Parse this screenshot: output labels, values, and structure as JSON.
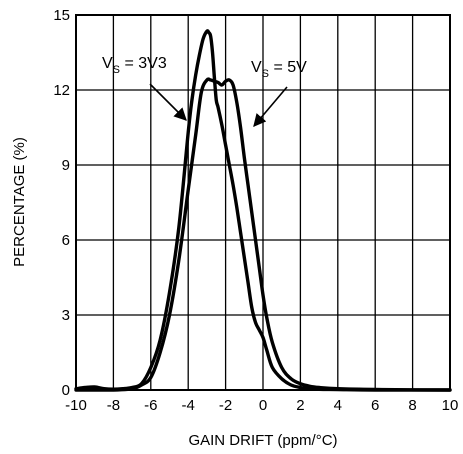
{
  "chart_data": {
    "type": "line",
    "title": "",
    "xlabel": "GAIN DRIFT (ppm/°C)",
    "ylabel": "PERCENTAGE (%)",
    "xlim": [
      -10,
      10
    ],
    "ylim": [
      0,
      15
    ],
    "xticks": [
      "-10",
      "-8",
      "-6",
      "-4",
      "-2",
      "0",
      "2",
      "4",
      "6",
      "8",
      "10"
    ],
    "yticks": [
      "0",
      "3",
      "6",
      "9",
      "12",
      "15"
    ],
    "grid": true,
    "annotations": [
      {
        "main": "V",
        "sub": "S",
        "rest": " = 3V3",
        "points_to": [
          -3.95,
          10.75
        ]
      },
      {
        "main": "V",
        "sub": "S",
        "rest": " = 5V",
        "points_to": [
          -0.6,
          10.4
        ]
      }
    ],
    "series": [
      {
        "x": [
          -10,
          -9.5,
          -9.0,
          -8.5,
          -8.0,
          -7.5,
          -7.0,
          -6.5,
          -6.0,
          -5.5,
          -5.0,
          -4.5,
          -4.0,
          -3.8,
          -3.6,
          -3.4,
          -3.2,
          -3.0,
          -2.9,
          -2.8,
          -2.7,
          -2.6,
          -2.5,
          -2.4,
          -2.2,
          -2.0,
          -1.8,
          -1.6,
          -1.4,
          -1.2,
          -1.0,
          -0.8,
          -0.6,
          -0.4,
          -0.2,
          0.0,
          0.2,
          0.5,
          1.0,
          1.5,
          2.0,
          2.5,
          3.0,
          4.0,
          6.0,
          10.0
        ],
        "values": [
          0.05,
          0.1,
          0.12,
          0.05,
          0.03,
          0.05,
          0.1,
          0.25,
          0.9,
          2.0,
          3.9,
          6.5,
          10.3,
          11.6,
          12.6,
          13.4,
          14.05,
          14.35,
          14.3,
          14.15,
          13.5,
          12.5,
          11.6,
          11.3,
          10.6,
          9.8,
          9.0,
          8.2,
          7.3,
          6.3,
          5.3,
          4.3,
          3.3,
          2.7,
          2.4,
          2.1,
          1.6,
          0.9,
          0.45,
          0.2,
          0.1,
          0.05,
          0.03,
          0.02,
          0.0,
          0.0
        ]
      },
      {
        "x": [
          -10,
          -8.0,
          -7.0,
          -6.5,
          -6.0,
          -5.5,
          -5.0,
          -4.5,
          -4.0,
          -3.6,
          -3.3,
          -3.0,
          -2.8,
          -2.6,
          -2.4,
          -2.2,
          -2.0,
          -1.8,
          -1.6,
          -1.4,
          -1.2,
          -1.0,
          -0.8,
          -0.6,
          -0.4,
          -0.2,
          0.0,
          0.2,
          0.5,
          1.0,
          1.5,
          2.0,
          2.5,
          3.0,
          4.0,
          6.0,
          10.0
        ],
        "values": [
          0.0,
          0.0,
          0.05,
          0.2,
          0.5,
          1.5,
          3.0,
          5.2,
          8.0,
          10.2,
          11.9,
          12.4,
          12.4,
          12.35,
          12.3,
          12.2,
          12.35,
          12.4,
          12.2,
          11.5,
          10.5,
          9.3,
          8.2,
          7.1,
          6.0,
          4.9,
          3.8,
          2.9,
          1.9,
          0.9,
          0.45,
          0.25,
          0.15,
          0.1,
          0.05,
          0.02,
          0.0
        ]
      }
    ]
  }
}
